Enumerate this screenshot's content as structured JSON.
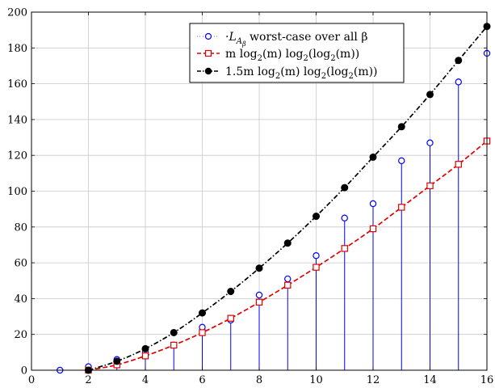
{
  "chart_data": {
    "type": "line",
    "title": "",
    "xlabel": "",
    "ylabel": "",
    "xlim": [
      0,
      16
    ],
    "ylim": [
      0,
      200
    ],
    "xticks": [
      0,
      2,
      4,
      6,
      8,
      10,
      12,
      14,
      16
    ],
    "yticks": [
      0,
      20,
      40,
      60,
      80,
      100,
      120,
      140,
      160,
      180,
      200
    ],
    "grid": true,
    "legend_position": "top-right",
    "series": [
      {
        "name": "·L_{A_β} worst-case over all β",
        "style": "stem",
        "color": "#0000ff",
        "marker": "open-circle",
        "x": [
          1,
          2,
          3,
          4,
          5,
          6,
          7,
          8,
          9,
          10,
          11,
          12,
          13,
          14,
          15,
          16
        ],
        "y": [
          0,
          2,
          6,
          10,
          14,
          24,
          28,
          42,
          51,
          64,
          85,
          93,
          117,
          127,
          161,
          177
        ]
      },
      {
        "name": "m log2(m) log2(log2(m))",
        "style": "dashed",
        "color": "#e00000",
        "marker": "open-square",
        "x": [
          2,
          3,
          4,
          5,
          6,
          7,
          8,
          9,
          10,
          11,
          12,
          13,
          14,
          15,
          16
        ],
        "y": [
          0,
          3,
          8,
          14,
          21,
          29,
          38,
          47.5,
          57.5,
          68,
          79,
          91,
          103,
          115,
          128
        ]
      },
      {
        "name": "1.5m log2(m) log2(log2(m))",
        "style": "dash-dot",
        "color": "#000000",
        "marker": "filled-circle",
        "x": [
          2,
          3,
          4,
          5,
          6,
          7,
          8,
          9,
          10,
          11,
          12,
          13,
          14,
          15,
          16
        ],
        "y": [
          0,
          5,
          12,
          21,
          32,
          44,
          57,
          71,
          86,
          102,
          119,
          136,
          154,
          173,
          192
        ]
      }
    ],
    "legend_labels": [
      {
        "prefix": "·",
        "main": "L",
        "sub": "A",
        "subsub": "β",
        "rest": " worst-case over all β"
      },
      {
        "pre": "m log",
        "s1": "2",
        "mid": "(m) log",
        "s2": "2",
        "mid2": "(log",
        "s3": "2",
        "post": "(m))"
      },
      {
        "pre": "1.5m log",
        "s1": "2",
        "mid": "(m) log",
        "s2": "2",
        "mid2": "(log",
        "s3": "2",
        "post": "(m))"
      }
    ]
  }
}
